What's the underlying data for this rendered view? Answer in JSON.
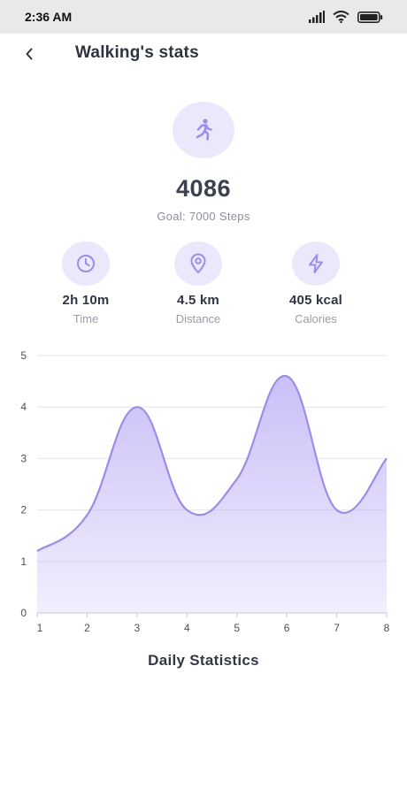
{
  "status_bar": {
    "time": "2:36 AM"
  },
  "header": {
    "title": "Walking's stats"
  },
  "summary": {
    "steps": "4086",
    "goal": "Goal: 7000 Steps"
  },
  "stats": [
    {
      "icon": "clock-icon",
      "value": "2h 10m",
      "label": "Time"
    },
    {
      "icon": "location-pin-icon",
      "value": "4.5 km",
      "label": "Distance"
    },
    {
      "icon": "lightning-icon",
      "value": "405 kcal",
      "label": "Calories"
    }
  ],
  "colors": {
    "accent": "#9b8de8",
    "accent_bg": "#ebe8fb",
    "grid": "#e4e4e8"
  },
  "chart_data": {
    "type": "area",
    "title": "Daily Statistics",
    "x": [
      1,
      2,
      3,
      4,
      5,
      6,
      7,
      8
    ],
    "x_tick_labels": [
      "1",
      "2",
      "3",
      "4",
      "5",
      "6",
      "7",
      "8"
    ],
    "y_tick_labels": [
      "0",
      "1",
      "2",
      "3",
      "4",
      "5"
    ],
    "series": [
      {
        "values": [
          1.2,
          1.9,
          4.0,
          2.0,
          2.6,
          4.6,
          2.0,
          3.0
        ]
      }
    ],
    "ylim": [
      0,
      5
    ],
    "xlim": [
      1,
      8
    ],
    "grid": true,
    "smooth": true
  }
}
